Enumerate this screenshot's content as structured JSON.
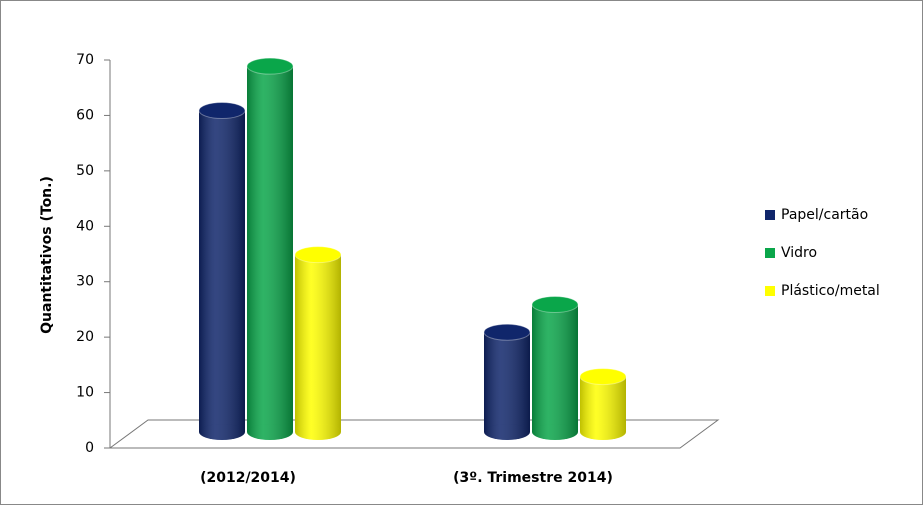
{
  "chart_data": {
    "type": "bar3d",
    "y_label": "Quantitativos (Ton.)",
    "categories": [
      "(2012/2014)",
      "(3º. Trimestre 2014)"
    ],
    "series": [
      {
        "name": "Papel/cartão",
        "color": "#10266b",
        "values": [
          58,
          18
        ]
      },
      {
        "name": "Vidro",
        "color": "#0aa64a",
        "values": [
          66,
          23
        ]
      },
      {
        "name": "Plástico/metal",
        "color": "#ffff00",
        "values": [
          32,
          10
        ]
      }
    ],
    "ylim": [
      0,
      70
    ],
    "yticks": [
      0,
      10,
      20,
      30,
      40,
      50,
      60,
      70
    ],
    "legend": "right"
  }
}
